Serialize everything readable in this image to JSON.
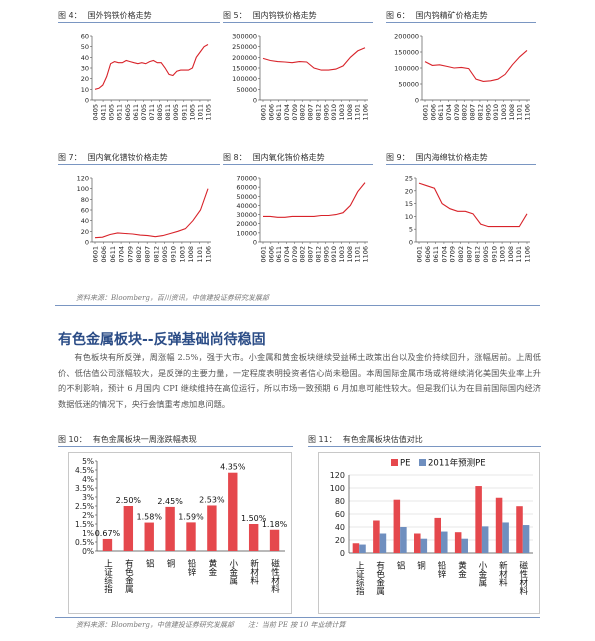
{
  "small_charts": [
    {
      "id": "fig4",
      "label": "图 4：",
      "title": "国外钨铁价格走势",
      "yticks": [
        0,
        10,
        20,
        30,
        40,
        50,
        60
      ],
      "xticks": [
        "0405",
        "0411",
        "0505",
        "0511",
        "0605",
        "0611",
        "0705",
        "0711",
        "0805",
        "0811",
        "0905",
        "0911",
        "1005",
        "1011",
        "1105"
      ],
      "chart_data": {
        "type": "line",
        "title": "国外钨铁价格走势",
        "ylim": [
          0,
          60
        ],
        "x": [
          "0405",
          "0408",
          "0411",
          "0502",
          "0505",
          "0508",
          "0511",
          "0602",
          "0605",
          "0608",
          "0611",
          "0702",
          "0705",
          "0708",
          "0711",
          "0802",
          "0805",
          "0808",
          "0811",
          "0902",
          "0905",
          "0908",
          "0911",
          "1002",
          "1005",
          "1008",
          "1011",
          "1102",
          "1105",
          "1106"
        ],
        "values": [
          10,
          11,
          14,
          22,
          34,
          36,
          35,
          35,
          37,
          36,
          35,
          34,
          35,
          34,
          36,
          37,
          35,
          35,
          30,
          24,
          23,
          27,
          28,
          28,
          28,
          30,
          40,
          45,
          50,
          52
        ]
      }
    },
    {
      "id": "fig5",
      "label": "图 5：",
      "title": "国内钨铁价格走势",
      "yticks": [
        0,
        50000,
        100000,
        150000,
        200000,
        250000,
        300000
      ],
      "xticks": [
        "0601",
        "0606",
        "0611",
        "0704",
        "0709",
        "0802",
        "0807",
        "0812",
        "0905",
        "0910",
        "1003",
        "1008",
        "1101",
        "1106"
      ],
      "chart_data": {
        "type": "line",
        "title": "国内钨铁价格走势",
        "ylim": [
          0,
          300000
        ],
        "x": [
          "0601",
          "0606",
          "0611",
          "0704",
          "0709",
          "0802",
          "0807",
          "0812",
          "0905",
          "0910",
          "1003",
          "1008",
          "1101",
          "1104",
          "1106"
        ],
        "values": [
          195000,
          185000,
          180000,
          178000,
          175000,
          180000,
          178000,
          150000,
          140000,
          140000,
          145000,
          160000,
          200000,
          230000,
          245000
        ]
      }
    },
    {
      "id": "fig6",
      "label": "图 6：",
      "title": "国内钨精矿价格走势",
      "yticks": [
        0,
        50000,
        100000,
        150000,
        200000
      ],
      "xticks": [
        "0601",
        "0606",
        "0611",
        "0704",
        "0709",
        "0802",
        "0807",
        "0812",
        "0905",
        "0910",
        "1003",
        "1008",
        "1101",
        "1106"
      ],
      "chart_data": {
        "type": "line",
        "title": "国内钨精矿价格走势",
        "ylim": [
          0,
          200000
        ],
        "x": [
          "0601",
          "0606",
          "0611",
          "0704",
          "0709",
          "0802",
          "0807",
          "0812",
          "0905",
          "0910",
          "1003",
          "1008",
          "1101",
          "1104",
          "1106"
        ],
        "values": [
          120000,
          108000,
          110000,
          105000,
          100000,
          102000,
          98000,
          65000,
          58000,
          60000,
          65000,
          80000,
          110000,
          135000,
          155000
        ]
      }
    },
    {
      "id": "fig7",
      "label": "图 7：",
      "title": "国内氧化镨钕价格走势",
      "yticks": [
        0,
        20,
        40,
        60,
        80,
        100,
        120
      ],
      "xticks": [
        "0601",
        "0606",
        "0611",
        "0704",
        "0709",
        "0802",
        "0807",
        "0812",
        "0905",
        "0910",
        "1003",
        "1008",
        "1101",
        "1106"
      ],
      "chart_data": {
        "type": "line",
        "title": "国内氧化镨钕价格走势",
        "ylim": [
          0,
          120
        ],
        "x": [
          "0601",
          "0606",
          "0611",
          "0704",
          "0709",
          "0802",
          "0807",
          "0812",
          "0905",
          "0910",
          "1003",
          "1008",
          "1101",
          "1104",
          "1105",
          "1106"
        ],
        "values": [
          8,
          9,
          14,
          17,
          16,
          15,
          13,
          12,
          10,
          12,
          16,
          20,
          25,
          40,
          60,
          100
        ]
      }
    },
    {
      "id": "fig8",
      "label": "图 8：",
      "title": "国内氧化铕价格走势",
      "yticks": [
        0,
        10000,
        20000,
        30000,
        40000,
        50000,
        60000,
        70000
      ],
      "xticks": [
        "0601",
        "0606",
        "0611",
        "0704",
        "0709",
        "0802",
        "0807",
        "0812",
        "0905",
        "0910",
        "1003",
        "1008",
        "1101",
        "1106"
      ],
      "chart_data": {
        "type": "line",
        "title": "国内氧化铕价格走势",
        "ylim": [
          0,
          70000
        ],
        "x": [
          "0601",
          "0606",
          "0611",
          "0704",
          "0709",
          "0802",
          "0807",
          "0812",
          "0905",
          "0910",
          "1003",
          "1008",
          "1101",
          "1104",
          "1106"
        ],
        "values": [
          28000,
          28000,
          27000,
          27000,
          28000,
          28000,
          28000,
          28000,
          29000,
          29000,
          30000,
          32000,
          40000,
          55000,
          65000
        ]
      }
    },
    {
      "id": "fig9",
      "label": "图 9：",
      "title": "国内海绵钛价格走势",
      "yticks": [
        0,
        5,
        10,
        15,
        20,
        25
      ],
      "xticks": [
        "0601",
        "0606",
        "0611",
        "0704",
        "0709",
        "0802",
        "0807",
        "0812",
        "0905",
        "0910",
        "1003",
        "1008",
        "1101",
        "1106"
      ],
      "chart_data": {
        "type": "line",
        "title": "国内海绵钛价格走势",
        "ylim": [
          0,
          25
        ],
        "x": [
          "0601",
          "0606",
          "0611",
          "0704",
          "0709",
          "0802",
          "0807",
          "0812",
          "0905",
          "0910",
          "1003",
          "1008",
          "1101",
          "1104",
          "1106"
        ],
        "values": [
          23,
          22,
          21,
          15,
          13,
          12,
          12,
          11,
          7,
          6,
          6,
          6,
          6,
          6,
          11
        ]
      }
    }
  ],
  "source1": "资料来源：Bloomberg，百川资讯，中信建投证券研究发展部",
  "section_title": "有色金属板块--反弹基础尚待稳固",
  "paragraph": "有色板块有所反弹，周涨幅 2.5%，强于大市。小金属和黄金板块继续受益稀土政策出台以及金价持续回升，涨幅居前。上周低价、低估值公司涨幅较大，是反弹的主要力量，一定程度表明投资者信心尚未稳固。本周国际金属市场或将继续消化美国失业率上升的不利影响，预计 6 月国内 CPI 继续维持在高位运行，所以市场一致预期 6 月加息可能性较大。但是我们认为在目前国际国内经济数据低迷的情况下，央行会慎重考虑加息问题。",
  "fig10": {
    "label": "图 10：",
    "title": "有色金属板块一周涨跌幅表现",
    "yticks": [
      "0%",
      "0.5%",
      "1%",
      "1.5%",
      "2%",
      "2.5%",
      "3%",
      "3.5%",
      "4%",
      "4.5%",
      "5%"
    ],
    "chart_data": {
      "type": "bar",
      "title": "有色金属板块一周涨跌幅表现",
      "ylim": [
        0,
        5
      ],
      "categories": [
        "上证综指",
        "有色金属",
        "铝",
        "铜",
        "铅锌",
        "黄金",
        "小金属",
        "新材料",
        "磁性材料"
      ],
      "values": [
        0.67,
        2.5,
        1.58,
        2.45,
        1.59,
        2.53,
        4.35,
        1.5,
        1.18
      ],
      "value_labels": [
        "0.67%",
        "2.50%",
        "1.58%",
        "2.45%",
        "1.59%",
        "2.53%",
        "4.35%",
        "1.50%",
        "1.18%"
      ],
      "color": "#e5484d"
    }
  },
  "fig11": {
    "label": "图 11：",
    "title": "有色金属板块估值对比",
    "yticks": [
      0,
      20,
      40,
      60,
      80,
      100,
      120
    ],
    "chart_data": {
      "type": "bar",
      "title": "有色金属板块估值对比",
      "ylim": [
        0,
        120
      ],
      "categories": [
        "上证综指",
        "有色金属",
        "铝",
        "铜",
        "铅锌",
        "黄金",
        "小金属",
        "新材料",
        "磁性材料"
      ],
      "series": [
        {
          "name": "PE",
          "color": "#e5484d",
          "values": [
            15,
            50,
            82,
            30,
            54,
            32,
            103,
            85,
            72
          ]
        },
        {
          "name": "2011年预测PE",
          "color": "#6f8fbf",
          "values": [
            13,
            30,
            40,
            22,
            33,
            22,
            41,
            47,
            43
          ]
        }
      ]
    }
  },
  "source2": "资料来源：Bloomberg，中信建投证券研究发展部　　注：当前 PE 按 10 年业绩计算"
}
